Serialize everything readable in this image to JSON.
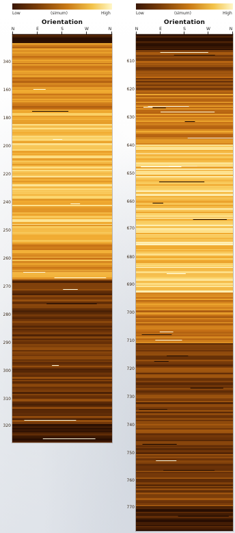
{
  "panels": [
    {
      "scale_low": "Low",
      "scale_mid": "(simum)",
      "scale_high": "High",
      "title": "Orientation",
      "compass": [
        "N",
        "E",
        "S",
        "W",
        "N"
      ],
      "depth_labels": [
        "340",
        "160",
        "180",
        "200",
        "220",
        "240",
        "250",
        "260",
        "270",
        "280",
        "290",
        "300",
        "310",
        "320"
      ]
    },
    {
      "scale_low": "Low",
      "scale_mid": "(simum)",
      "scale_high": "High",
      "title": "Orientation",
      "compass": [
        "N",
        "E",
        "S",
        "W",
        "N"
      ],
      "depth_labels": [
        "610",
        "620",
        "630",
        "640",
        "650",
        "660",
        "670",
        "680",
        "690",
        "700",
        "710",
        "720",
        "730",
        "740",
        "750",
        "760",
        "770"
      ]
    }
  ],
  "colors": {
    "dark": "#2e1102",
    "mid": "#b5620e",
    "bright": "#f6b032",
    "highlight": "#fff3b8"
  }
}
